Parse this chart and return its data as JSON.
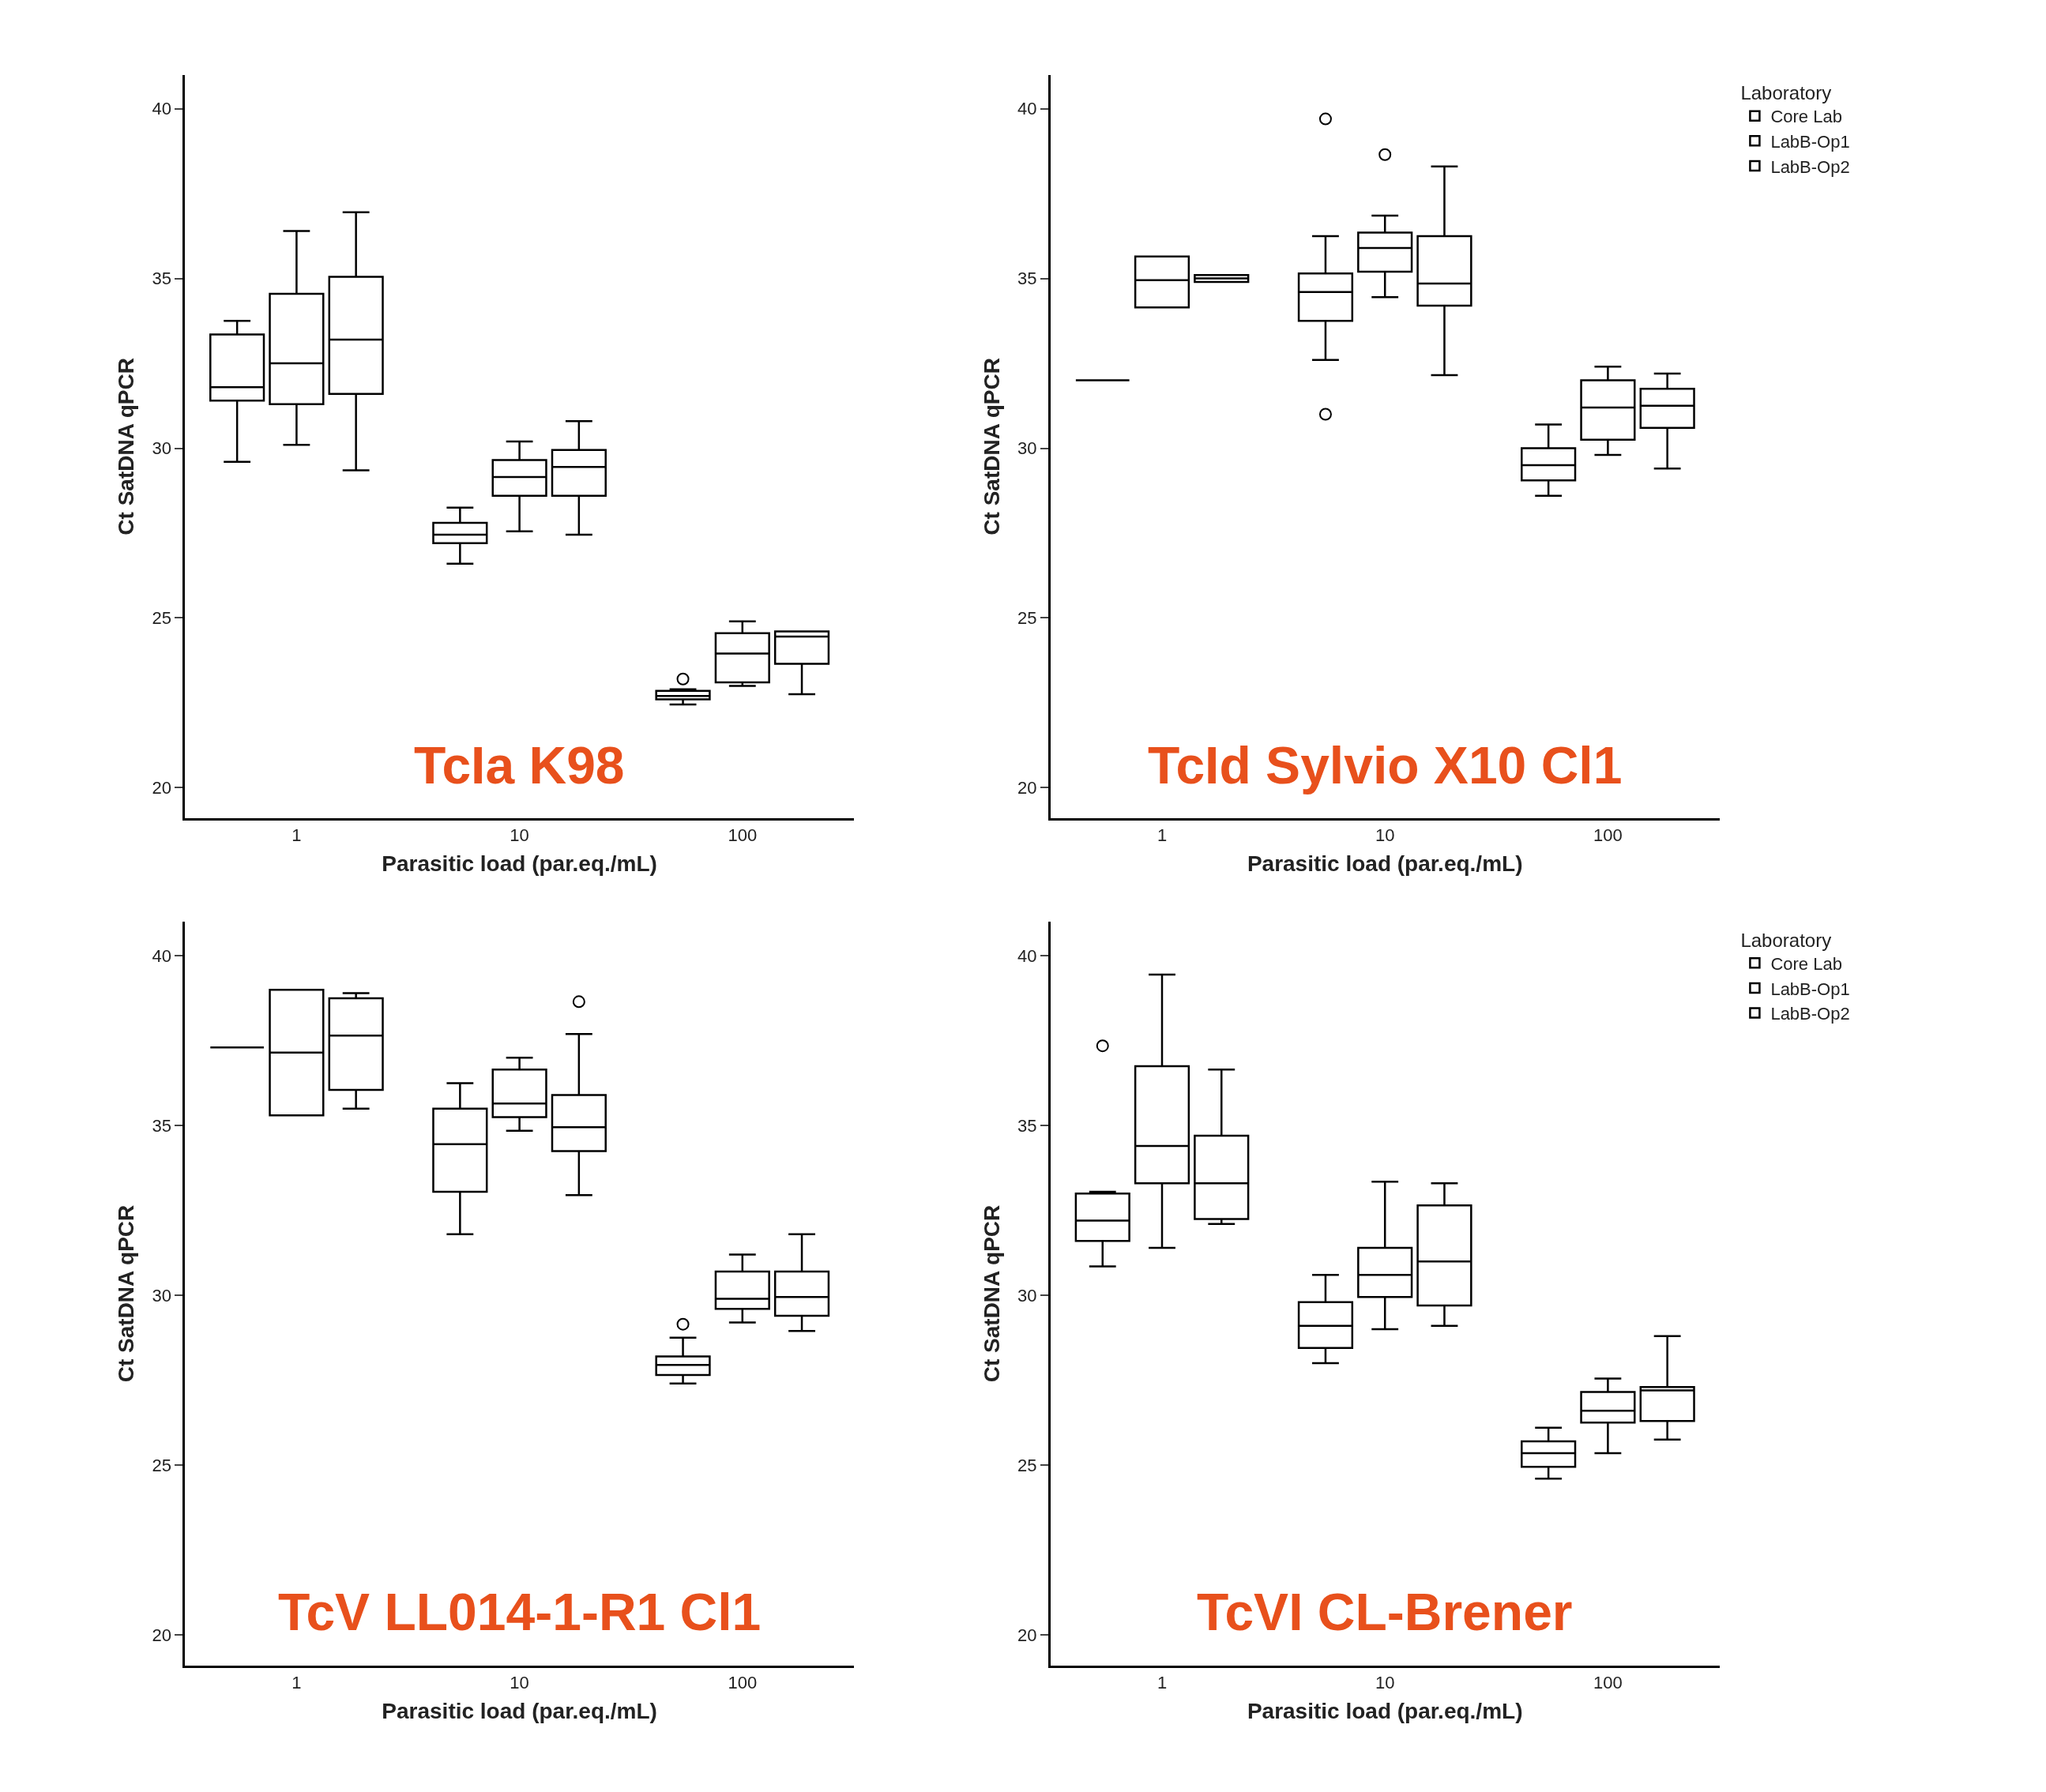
{
  "chart_data": [
    {
      "type": "box",
      "title": "TcIa K98",
      "xlabel": "Parasitic load (par.eq./mL)",
      "ylabel": "Ct SatDNA qPCR",
      "categories": [
        "1",
        "10",
        "100"
      ],
      "ylim": [
        19.1,
        41.0
      ],
      "yticks": [
        20,
        25,
        30,
        35,
        40
      ],
      "legend": false,
      "series": [
        {
          "color": "#000000",
          "boxes": [
            {
              "low": 29.6,
              "q1": 31.4,
              "median": 31.8,
              "q3": 33.35,
              "high": 33.75
            },
            {
              "low": 26.6,
              "q1": 27.2,
              "median": 27.45,
              "q3": 27.8,
              "high": 28.25
            },
            {
              "low": 22.45,
              "q1": 22.6,
              "median": 22.7,
              "q3": 22.85,
              "high": 22.9,
              "outliers": [
                23.2
              ]
            }
          ]
        },
        {
          "color": "#000000",
          "boxes": [
            {
              "low": 30.1,
              "q1": 31.3,
              "median": 32.5,
              "q3": 34.55,
              "high": 36.4
            },
            {
              "low": 27.55,
              "q1": 28.6,
              "median": 29.15,
              "q3": 29.65,
              "high": 30.2
            },
            {
              "low": 23.0,
              "q1": 23.1,
              "median": 23.95,
              "q3": 24.55,
              "high": 24.9
            }
          ]
        },
        {
          "color": "#000000",
          "boxes": [
            {
              "low": 29.35,
              "q1": 31.6,
              "median": 33.2,
              "q3": 35.05,
              "high": 36.95
            },
            {
              "low": 27.45,
              "q1": 28.6,
              "median": 29.45,
              "q3": 29.95,
              "high": 30.8
            },
            {
              "low": 22.75,
              "q1": 23.65,
              "median": 24.45,
              "q3": 24.6,
              "high": 24.6
            }
          ]
        }
      ]
    },
    {
      "type": "box",
      "title": "TcId Sylvio X10 Cl1",
      "xlabel": "Parasitic load (par.eq./mL)",
      "ylabel": "Ct SatDNA qPCR",
      "categories": [
        "1",
        "10",
        "100"
      ],
      "ylim": [
        19.1,
        41.0
      ],
      "yticks": [
        20,
        25,
        30,
        35,
        40
      ],
      "legend": "top right",
      "legend_title": "Laboratory",
      "series": [
        {
          "name": "Core Lab",
          "color": "#000000",
          "boxes": [
            {
              "low": 32.0,
              "q1": 32.0,
              "median": 32.0,
              "q3": 32.0,
              "high": 32.0
            },
            {
              "low": 32.6,
              "q1": 33.75,
              "median": 34.6,
              "q3": 35.15,
              "high": 36.25,
              "outliers": [
                39.7,
                31.0
              ]
            },
            {
              "low": 28.6,
              "q1": 29.05,
              "median": 29.5,
              "q3": 30.0,
              "high": 30.7
            }
          ]
        },
        {
          "name": "LabB-Op1",
          "color": "#000000",
          "boxes": [
            {
              "low": 34.15,
              "q1": 34.15,
              "median": 34.95,
              "q3": 35.65,
              "high": 35.65
            },
            {
              "low": 34.45,
              "q1": 35.2,
              "median": 35.9,
              "q3": 36.35,
              "high": 36.85,
              "outliers": [
                38.65
              ]
            },
            {
              "low": 29.8,
              "q1": 30.25,
              "median": 31.2,
              "q3": 32.0,
              "high": 32.4
            }
          ]
        },
        {
          "name": "LabB-Op2",
          "color": "#000000",
          "boxes": [
            {
              "low": 34.9,
              "q1": 34.9,
              "median": 35.0,
              "q3": 35.1,
              "high": 35.1
            },
            {
              "low": 32.15,
              "q1": 34.2,
              "median": 34.85,
              "q3": 36.25,
              "high": 38.3
            },
            {
              "low": 29.4,
              "q1": 30.6,
              "median": 31.25,
              "q3": 31.75,
              "high": 32.2
            }
          ]
        }
      ]
    },
    {
      "type": "box",
      "title": "TcV LL014-1-R1 Cl1",
      "xlabel": "Parasitic load (par.eq./mL)",
      "ylabel": "Ct SatDNA qPCR",
      "categories": [
        "1",
        "10",
        "100"
      ],
      "ylim": [
        19.1,
        41.0
      ],
      "yticks": [
        20,
        25,
        30,
        35,
        40
      ],
      "legend": false,
      "series": [
        {
          "color": "#000000",
          "boxes": [
            {
              "low": 37.3,
              "q1": 37.3,
              "median": 37.3,
              "q3": 37.3,
              "high": 37.3
            },
            {
              "low": 31.8,
              "q1": 33.05,
              "median": 34.45,
              "q3": 35.5,
              "high": 36.25
            },
            {
              "low": 27.4,
              "q1": 27.65,
              "median": 27.95,
              "q3": 28.2,
              "high": 28.75,
              "outliers": [
                29.15
              ]
            }
          ]
        },
        {
          "color": "#000000",
          "boxes": [
            {
              "low": 35.3,
              "q1": 35.3,
              "median": 37.15,
              "q3": 39.0,
              "high": 39.0
            },
            {
              "low": 34.85,
              "q1": 35.25,
              "median": 35.65,
              "q3": 36.65,
              "high": 37.0
            },
            {
              "low": 29.2,
              "q1": 29.6,
              "median": 29.9,
              "q3": 30.7,
              "high": 31.2
            }
          ]
        },
        {
          "color": "#000000",
          "boxes": [
            {
              "low": 35.5,
              "q1": 36.05,
              "median": 37.65,
              "q3": 38.75,
              "high": 38.9
            },
            {
              "low": 32.95,
              "q1": 34.25,
              "median": 34.95,
              "q3": 35.9,
              "high": 37.7,
              "outliers": [
                38.65
              ]
            },
            {
              "low": 28.95,
              "q1": 29.4,
              "median": 29.95,
              "q3": 30.7,
              "high": 31.8
            }
          ]
        }
      ]
    },
    {
      "type": "box",
      "title": "TcVI CL-Brener",
      "xlabel": "Parasitic load (par.eq./mL)",
      "ylabel": "Ct SatDNA qPCR",
      "categories": [
        "1",
        "10",
        "100"
      ],
      "ylim": [
        19.1,
        41.0
      ],
      "yticks": [
        20,
        25,
        30,
        35,
        40
      ],
      "legend": "top right",
      "legend_title": "Laboratory",
      "series": [
        {
          "name": "Core Lab",
          "color": "#000000",
          "boxes": [
            {
              "low": 30.85,
              "q1": 31.6,
              "median": 32.2,
              "q3": 33.0,
              "high": 33.05,
              "outliers": [
                37.35
              ]
            },
            {
              "low": 28.0,
              "q1": 28.45,
              "median": 29.1,
              "q3": 29.8,
              "high": 30.6
            },
            {
              "low": 24.6,
              "q1": 24.95,
              "median": 25.35,
              "q3": 25.7,
              "high": 26.1
            }
          ]
        },
        {
          "name": "LabB-Op1",
          "color": "#000000",
          "boxes": [
            {
              "low": 31.4,
              "q1": 33.3,
              "median": 34.4,
              "q3": 36.75,
              "high": 39.45
            },
            {
              "low": 29.0,
              "q1": 29.95,
              "median": 30.6,
              "q3": 31.4,
              "high": 33.35
            },
            {
              "low": 25.35,
              "q1": 26.25,
              "median": 26.6,
              "q3": 27.15,
              "high": 27.55
            }
          ]
        },
        {
          "name": "LabB-Op2",
          "color": "#000000",
          "boxes": [
            {
              "low": 32.1,
              "q1": 32.25,
              "median": 33.3,
              "q3": 34.7,
              "high": 36.65
            },
            {
              "low": 29.1,
              "q1": 29.7,
              "median": 31.0,
              "q3": 32.65,
              "high": 33.3
            },
            {
              "low": 25.75,
              "q1": 26.3,
              "median": 27.2,
              "q3": 27.3,
              "high": 28.8
            }
          ]
        }
      ]
    }
  ]
}
